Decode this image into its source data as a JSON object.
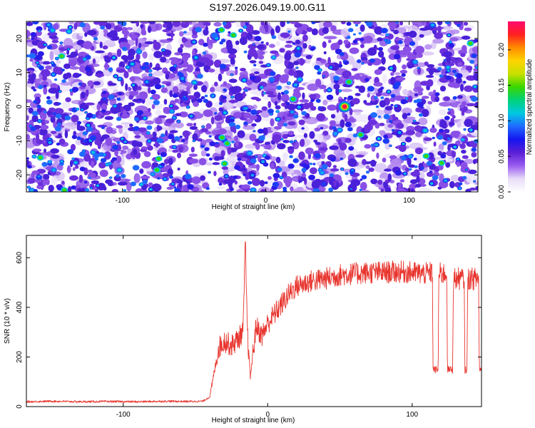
{
  "title": "S197.2026.049.19.00.G11",
  "colors": {
    "line": "#e8352e",
    "frame": "#000000",
    "spectrum_background": "#ffffff",
    "spectrum_low": "#f1ecfb",
    "spectrum_mid": "#6a2fdc",
    "spectrum_high": "#ff1a2a"
  },
  "chart_data": [
    {
      "type": "heatmap",
      "title": "S197.2026.049.19.00.G11",
      "xlabel": "Height of straight line (km)",
      "ylabel": "Frequency (Hz)",
      "xlim": [
        -167,
        148
      ],
      "ylim": [
        -25,
        25
      ],
      "x_ticks": [
        "-100",
        "0",
        "100"
      ],
      "x_tick_values": [
        -100,
        0,
        100
      ],
      "y_ticks": [
        "-20",
        "-10",
        "0",
        "10",
        "20"
      ],
      "y_tick_values": [
        -20,
        -10,
        0,
        10,
        20
      ],
      "colorbar": {
        "label": "Normalized spectral amplitude",
        "range": [
          0,
          0.24
        ],
        "ticks": [
          "0.00",
          "0.05",
          "0.10",
          "0.15",
          "0.20"
        ],
        "tick_values": [
          0,
          0.05,
          0.1,
          0.15,
          0.2
        ],
        "colormap": [
          "#ffffff",
          "#e8dcf8",
          "#9a5cf0",
          "#5a1fd6",
          "#1515f0",
          "#1f6bff",
          "#00c8e0",
          "#00d27a",
          "#3ad600",
          "#c8e000",
          "#ffd400",
          "#ff8c00",
          "#ff2020",
          "#ff0a6e"
        ]
      },
      "notes": "Dense field of small speckles; strongest peak near height 55 km, frequency 0 Hz (~0.24)"
    },
    {
      "type": "line",
      "xlabel": "Height of straight line (km)",
      "ylabel": "SNR (10 * v/v)",
      "xlim": [
        -167,
        148
      ],
      "ylim": [
        0,
        690
      ],
      "x_ticks": [
        "-100",
        "0",
        "100"
      ],
      "x_tick_values": [
        -100,
        0,
        100
      ],
      "y_ticks": [
        "0",
        "200",
        "400",
        "600"
      ],
      "y_tick_values": [
        0,
        200,
        400,
        600
      ],
      "grid": false,
      "series": [
        {
          "x": [
            -167,
            -150,
            -130,
            -110,
            -90,
            -70,
            -55,
            -45,
            -40,
            -37,
            -34,
            -30,
            -25,
            -20,
            -17,
            -15.5,
            -14,
            -12,
            -8,
            -4,
            0,
            5,
            10,
            15,
            20,
            30,
            40,
            50,
            60,
            70,
            80,
            90,
            100,
            110,
            114,
            114.5,
            118,
            118.5,
            124,
            124.5,
            128,
            128.5,
            136,
            136.5,
            138,
            138.5,
            146,
            146.5,
            148
          ],
          "y": [
            20,
            22,
            20,
            21,
            20,
            22,
            21,
            22,
            40,
            140,
            240,
            270,
            250,
            280,
            310,
            660,
            300,
            120,
            330,
            290,
            340,
            380,
            420,
            460,
            490,
            510,
            520,
            535,
            540,
            545,
            545,
            548,
            545,
            540,
            545,
            150,
            150,
            540,
            540,
            150,
            150,
            520,
            520,
            150,
            150,
            520,
            520,
            150,
            150
          ]
        }
      ]
    }
  ]
}
